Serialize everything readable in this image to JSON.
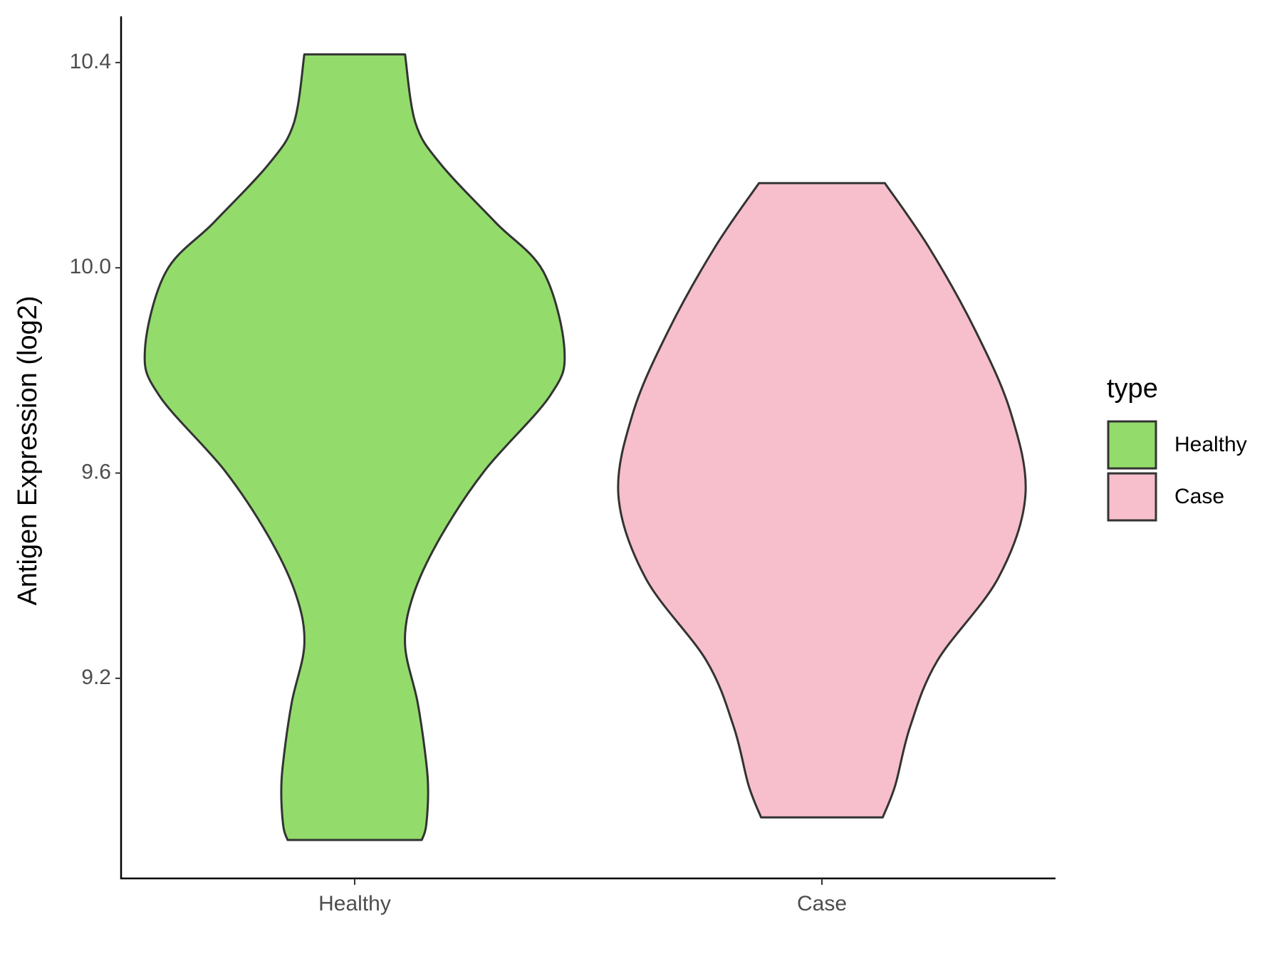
{
  "chart_data": {
    "type": "violin",
    "ylabel": "Antigen Expression (log2)",
    "categories": [
      "Healthy",
      "Case"
    ],
    "legend_title": "type",
    "legend": "right",
    "ylim": [
      8.81,
      10.49
    ],
    "yticks": [
      9.2,
      9.6,
      {
        "value": 10,
        "label": "10.0"
      },
      10.4
    ],
    "series": [
      {
        "name": "Healthy",
        "color": "#93dc6b",
        "y": [
          8.885,
          8.911,
          8.976,
          9.04,
          9.153,
          9.266,
          9.363,
          9.476,
          9.605,
          9.75,
          9.839,
          9.992,
          10.089,
          10.202,
          10.282,
          10.416
        ],
        "density": [
          0.32,
          0.34,
          0.35,
          0.34,
          0.3,
          0.24,
          0.28,
          0.41,
          0.62,
          0.93,
          1,
          0.9,
          0.67,
          0.41,
          0.29,
          0.24
        ]
      },
      {
        "name": "Case",
        "color": "#f7bfcb",
        "y": [
          8.929,
          8.992,
          9.105,
          9.234,
          9.395,
          9.556,
          9.718,
          9.879,
          10.04,
          10.165
        ],
        "density": [
          0.29,
          0.35,
          0.42,
          0.55,
          0.84,
          0.97,
          0.9,
          0.73,
          0.51,
          0.3
        ]
      }
    ]
  }
}
